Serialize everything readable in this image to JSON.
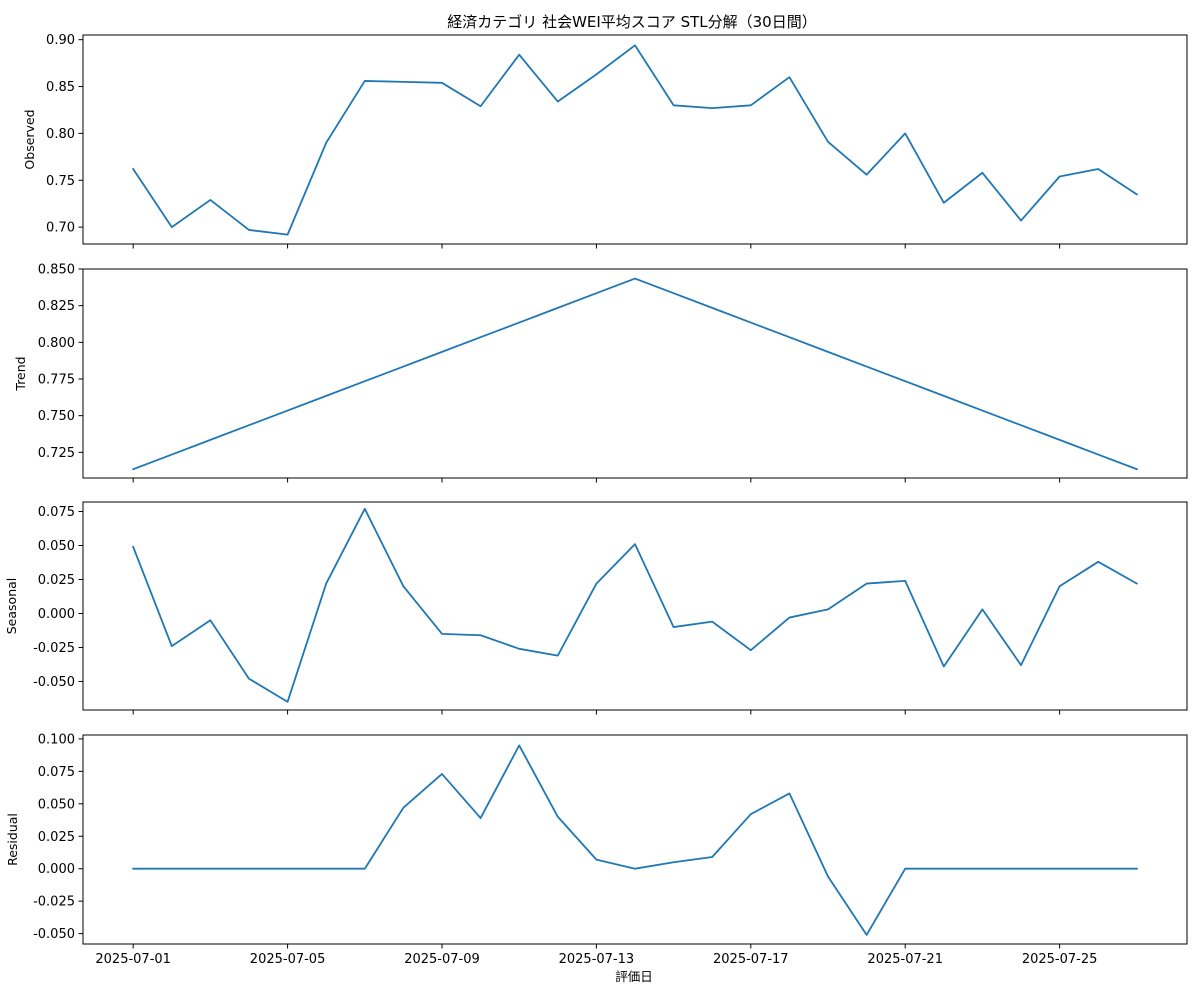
{
  "chart_data": {
    "type": "line",
    "title": "経済カテゴリ 社会WEI平均スコア STL分解（30日間）",
    "xlabel": "評価日",
    "x": [
      "2025-07-01",
      "2025-07-02",
      "2025-07-03",
      "2025-07-04",
      "2025-07-05",
      "2025-07-06",
      "2025-07-07",
      "2025-07-08",
      "2025-07-09",
      "2025-07-10",
      "2025-07-11",
      "2025-07-12",
      "2025-07-13",
      "2025-07-14",
      "2025-07-15",
      "2025-07-16",
      "2025-07-17",
      "2025-07-18",
      "2025-07-19",
      "2025-07-20",
      "2025-07-21",
      "2025-07-22",
      "2025-07-23",
      "2025-07-24",
      "2025-07-25",
      "2025-07-26",
      "2025-07-27"
    ],
    "xticks": [
      "2025-07-01",
      "2025-07-05",
      "2025-07-09",
      "2025-07-13",
      "2025-07-17",
      "2025-07-21",
      "2025-07-25"
    ],
    "xlim": [
      "2025-06-29.7",
      "2025-07-28.3"
    ],
    "line_color": "#1f77b4",
    "grid": false,
    "panels": [
      {
        "ylabel": "Observed",
        "ylim": [
          0.682,
          0.905
        ],
        "yticks": [
          "0.70",
          "0.75",
          "0.80",
          "0.85",
          "0.90"
        ],
        "values": [
          0.762,
          0.7,
          0.729,
          0.697,
          0.692,
          0.79,
          0.856,
          0.855,
          0.854,
          0.829,
          0.884,
          0.834,
          0.863,
          0.894,
          0.83,
          0.827,
          0.83,
          0.86,
          0.791,
          0.756,
          0.8,
          0.726,
          0.758,
          0.707,
          0.754,
          0.762,
          0.735
        ]
      },
      {
        "ylabel": "Trend",
        "ylim": [
          0.7075,
          0.85
        ],
        "yticks": [
          "0.725",
          "0.750",
          "0.775",
          "0.800",
          "0.825",
          "0.850"
        ],
        "values": [
          0.7135,
          0.7235,
          0.7335,
          0.7435,
          0.7535,
          0.7635,
          0.7735,
          0.7835,
          0.7935,
          0.8035,
          0.8135,
          0.8235,
          0.8335,
          0.8435,
          0.8335,
          0.8235,
          0.8135,
          0.8035,
          0.7935,
          0.7835,
          0.7735,
          0.7635,
          0.7535,
          0.7435,
          0.7335,
          0.7235,
          0.7135
        ]
      },
      {
        "ylabel": "Seasonal",
        "ylim": [
          -0.071,
          0.082
        ],
        "yticks": [
          "-0.050",
          "-0.025",
          "0.000",
          "0.025",
          "0.050",
          "0.075"
        ],
        "values": [
          0.049,
          -0.024,
          -0.005,
          -0.048,
          -0.065,
          0.022,
          0.077,
          0.02,
          -0.015,
          -0.016,
          -0.026,
          -0.031,
          0.022,
          0.051,
          -0.01,
          -0.006,
          -0.027,
          -0.003,
          0.003,
          0.022,
          0.024,
          -0.039,
          0.003,
          -0.038,
          0.02,
          0.038,
          0.022
        ]
      },
      {
        "ylabel": "Residual",
        "ylim": [
          -0.058,
          0.103
        ],
        "yticks": [
          "-0.050",
          "-0.025",
          "0.000",
          "0.025",
          "0.050",
          "0.075",
          "0.100"
        ],
        "values": [
          0.0,
          0.0,
          0.0,
          0.0,
          0.0,
          0.0,
          0.0,
          0.047,
          0.073,
          0.039,
          0.095,
          0.04,
          0.007,
          0.0,
          0.005,
          0.009,
          0.042,
          0.058,
          -0.006,
          -0.051,
          0.0,
          0.0,
          0.0,
          0.0,
          0.0,
          0.0,
          0.0
        ]
      }
    ]
  }
}
